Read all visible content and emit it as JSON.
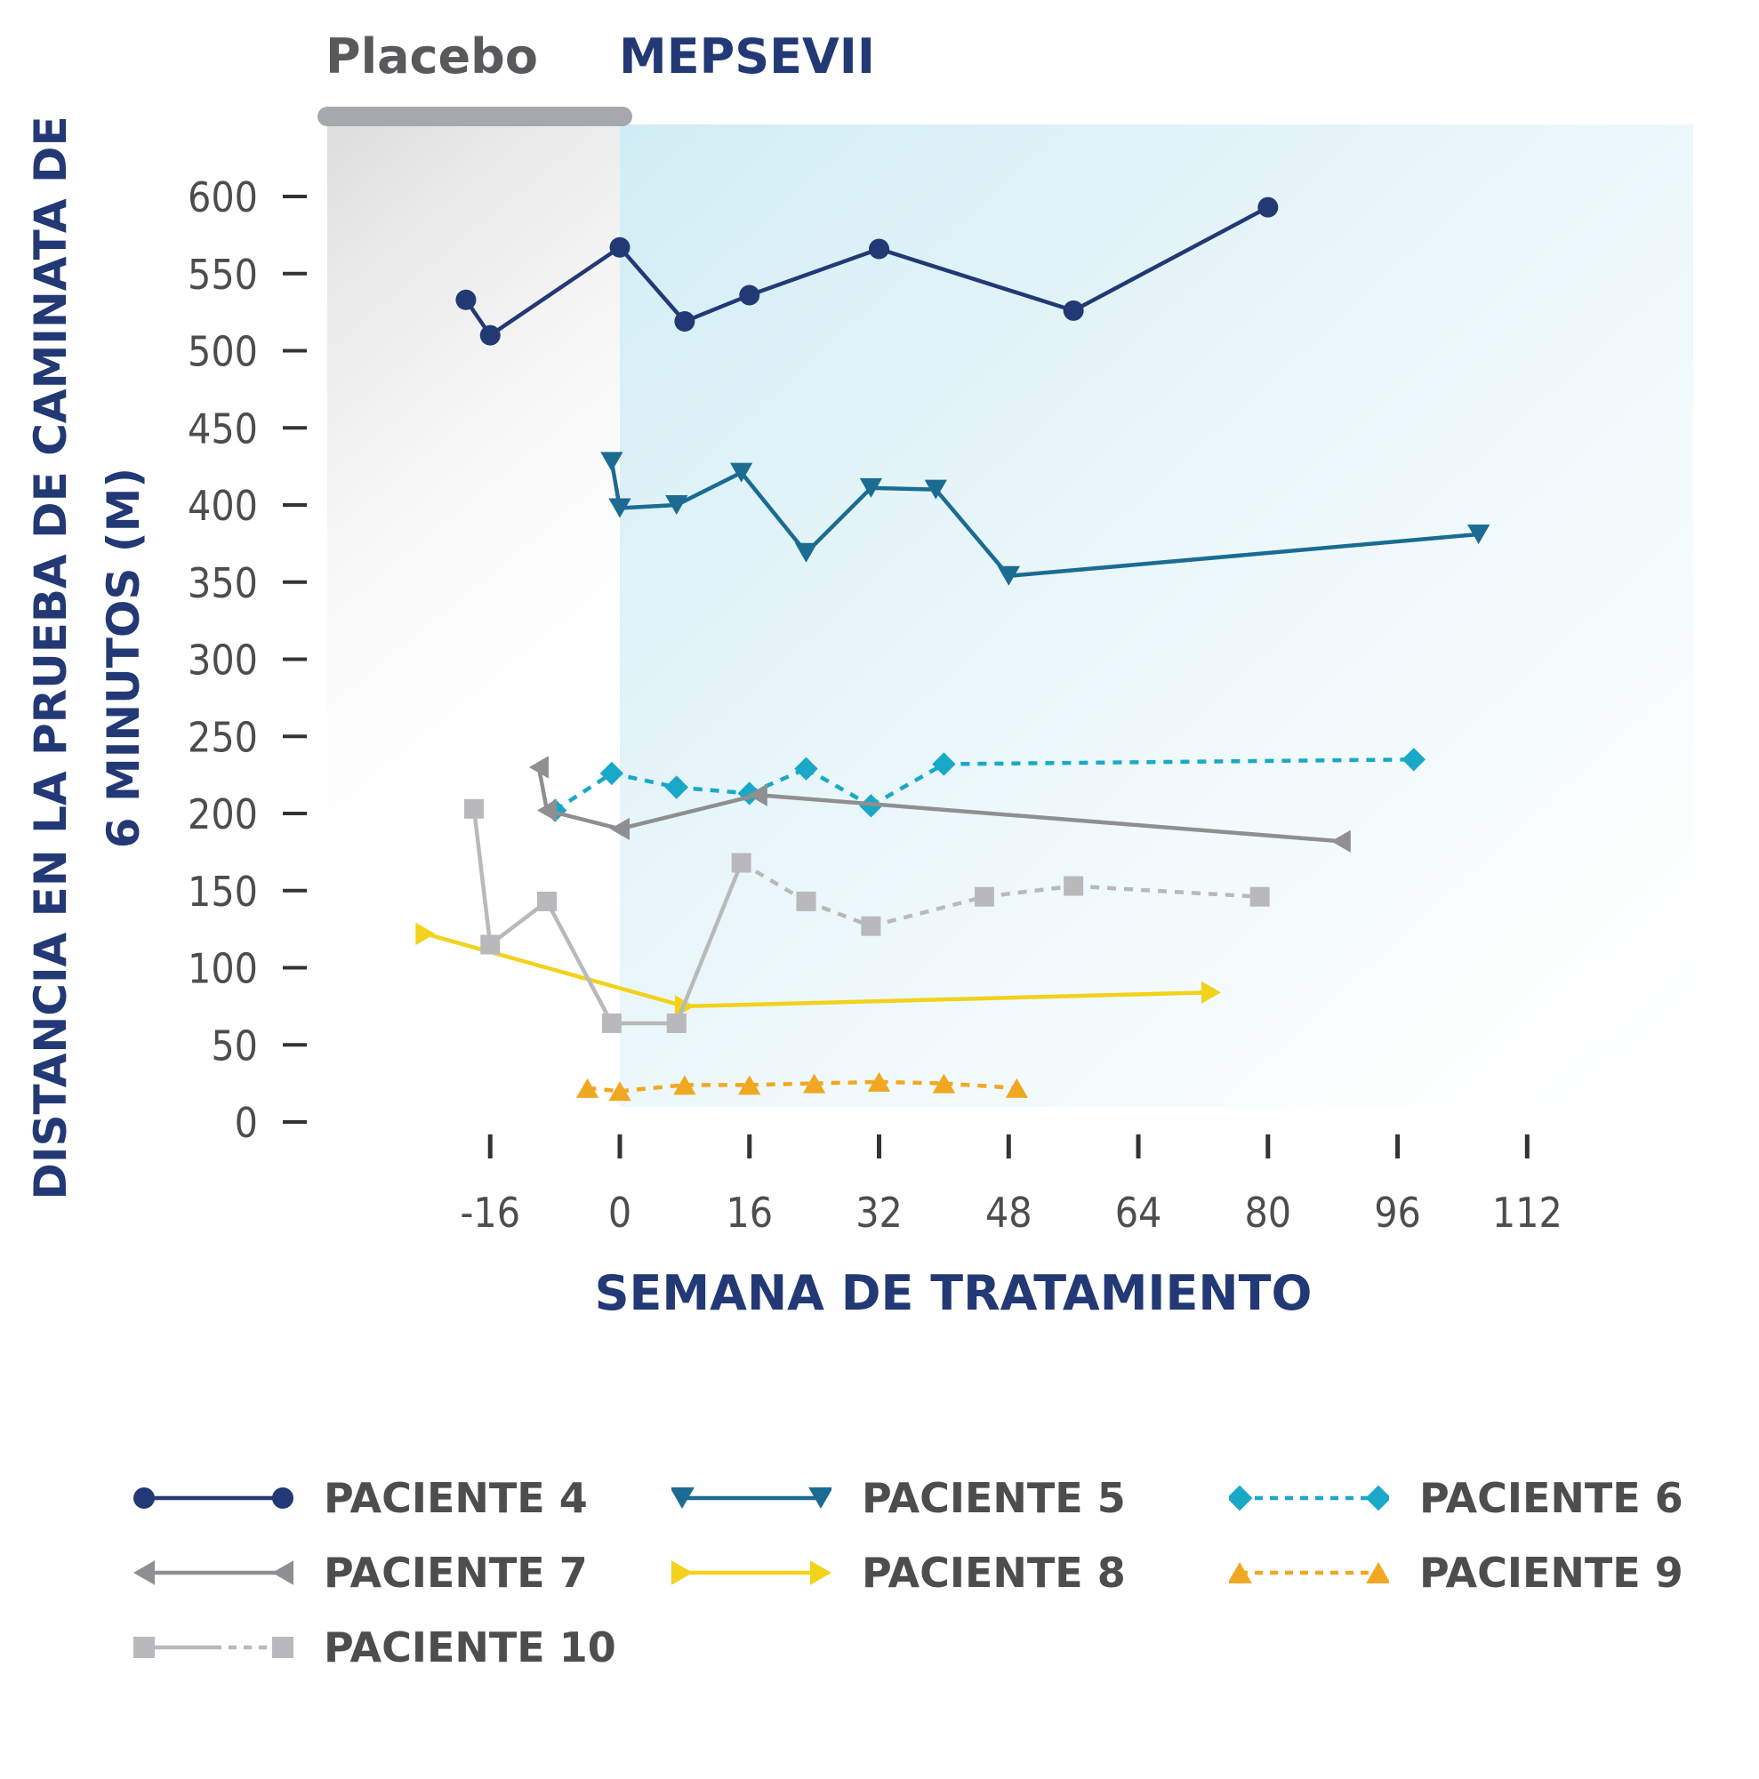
{
  "header": {
    "placebo_label": "Placebo",
    "treatment_label": "MEPSEVII",
    "placebo_color": "#a5a8ad",
    "treatment_gradient": [
      "#243a77",
      "#2e8fb3",
      "#45c6da"
    ]
  },
  "chart_data": {
    "type": "line",
    "title": "",
    "xlabel": "SEMANA DE TRATAMIENTO",
    "ylabel_lines": [
      "DISTANCIA EN LA PRUEBA DE CAMINATA DE",
      "6 MINUTOS (M)"
    ],
    "xlim": [
      -22,
      124
    ],
    "ylim": [
      0,
      600
    ],
    "x_ticks": [
      -16,
      0,
      16,
      32,
      48,
      64,
      80,
      96,
      112
    ],
    "x_tick_labels": [
      "-16",
      "0",
      "16",
      "32",
      "48",
      "64",
      "80",
      "96",
      "112"
    ],
    "y_ticks": [
      0,
      50,
      100,
      150,
      200,
      250,
      300,
      350,
      400,
      450,
      500,
      550,
      600
    ],
    "y_tick_labels": [
      "0",
      "50",
      "100",
      "150",
      "200",
      "250",
      "300",
      "350",
      "400",
      "450",
      "500",
      "550",
      "600"
    ],
    "placebo_region": [
      -36,
      0
    ],
    "treatment_region": [
      0,
      128
    ],
    "legend_position": "bottom",
    "series": [
      {
        "name": "PACIENTE 4",
        "color": "#233975",
        "marker": "circle",
        "dash": false,
        "points": [
          [
            -19,
            533
          ],
          [
            -16,
            510
          ],
          [
            0,
            567
          ],
          [
            8,
            519
          ],
          [
            16,
            536
          ],
          [
            32,
            566
          ],
          [
            56,
            526
          ],
          [
            80,
            593
          ]
        ]
      },
      {
        "name": "PACIENTE 5",
        "color": "#1b6b92",
        "marker": "triangle-down",
        "dash": false,
        "points": [
          [
            -1,
            428
          ],
          [
            0,
            398
          ],
          [
            7,
            400
          ],
          [
            15,
            421
          ],
          [
            23,
            369
          ],
          [
            31,
            411
          ],
          [
            39,
            410
          ],
          [
            48,
            354
          ],
          [
            106,
            381
          ]
        ]
      },
      {
        "name": "PACIENTE 6",
        "color": "#1aa8c8",
        "marker": "diamond",
        "dash": true,
        "points": [
          [
            -8,
            202
          ],
          [
            -1,
            226
          ],
          [
            7,
            217
          ],
          [
            16,
            213
          ],
          [
            23,
            229
          ],
          [
            31,
            205
          ],
          [
            40,
            232
          ],
          [
            98,
            235
          ]
        ]
      },
      {
        "name": "PACIENTE 7",
        "color": "#8f8f92",
        "marker": "triangle-left",
        "dash": false,
        "points": [
          [
            -10,
            230
          ],
          [
            -9,
            202
          ],
          [
            0,
            190
          ],
          [
            17,
            212
          ],
          [
            89,
            182
          ]
        ]
      },
      {
        "name": "PACIENTE 8",
        "color": "#f2d21b",
        "marker": "triangle-right",
        "dash": false,
        "points": [
          [
            -24,
            122
          ],
          [
            8,
            75
          ],
          [
            73,
            84
          ]
        ]
      },
      {
        "name": "PACIENTE 9",
        "color": "#f0a823",
        "marker": "triangle-up",
        "dash": true,
        "points": [
          [
            -4,
            22
          ],
          [
            0,
            20
          ],
          [
            8,
            24
          ],
          [
            16,
            24
          ],
          [
            24,
            25
          ],
          [
            32,
            26
          ],
          [
            40,
            25
          ],
          [
            49,
            22
          ]
        ]
      },
      {
        "name": "PACIENTE 10",
        "color": "#b9b9bb",
        "marker": "square",
        "dash": "mixed",
        "points": [
          [
            -18,
            203
          ],
          [
            -16,
            115
          ],
          [
            -9,
            143
          ],
          [
            -1,
            64
          ],
          [
            7,
            64
          ],
          [
            15,
            168
          ],
          [
            23,
            143
          ],
          [
            31,
            127
          ],
          [
            45,
            146
          ],
          [
            56,
            153
          ],
          [
            79,
            146
          ]
        ],
        "dashed_from_index": 5
      }
    ]
  }
}
